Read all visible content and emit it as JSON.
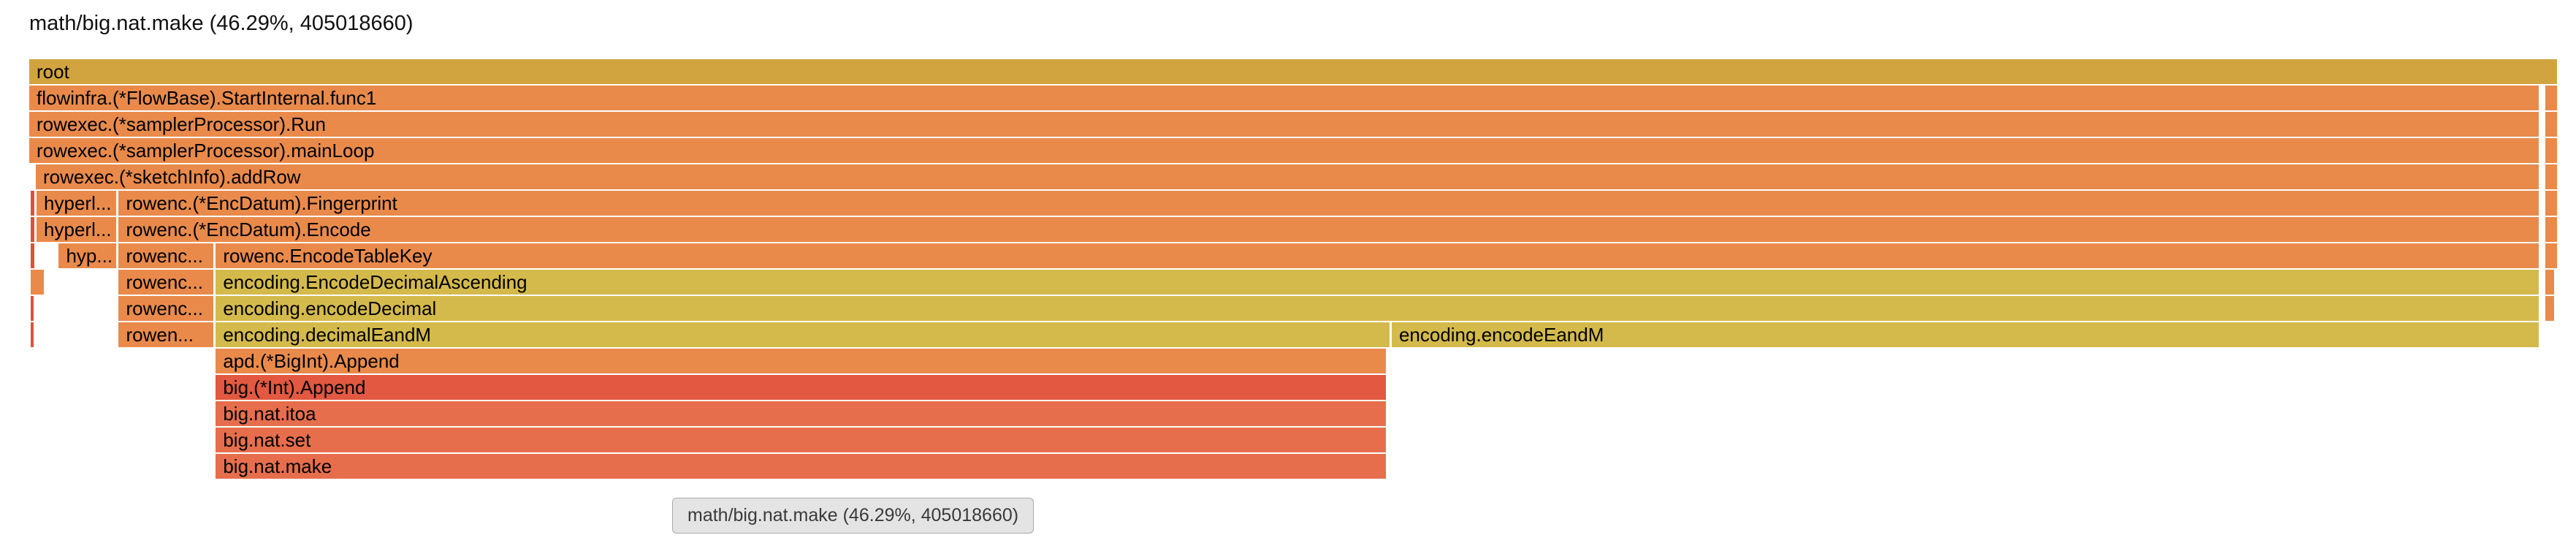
{
  "page": {
    "title": "math/big.nat.make (46.29%, 405018660)"
  },
  "tooltip": {
    "text": "math/big.nat.make (46.29%, 405018660)"
  },
  "chart_data": {
    "type": "flamegraph",
    "title": "math/big.nat.make (46.29%, 405018660)",
    "selected_frame": {
      "name": "math/big.nat.make",
      "percent": "46.29%",
      "value": 405018660
    },
    "legend_position": "none",
    "grid": false,
    "colors": {
      "root": "#d1a43f",
      "orange": "#e98a4b",
      "gold": "#d4ba4b",
      "sliver": "#d9543a",
      "red": "#e25840",
      "redlight": "#e76e4c"
    },
    "frames": [
      {
        "label": "root",
        "depth": 0,
        "x": 0,
        "w": 100,
        "color": "root"
      },
      {
        "label": "flowinfra.(*FlowBase).StartInternal.func1",
        "depth": 1,
        "x": 0,
        "w": 99.28,
        "color": "orange"
      },
      {
        "label": "",
        "depth": 1,
        "x": 99.53,
        "w": 0.47,
        "color": "orange"
      },
      {
        "label": "rowexec.(*samplerProcessor).Run",
        "depth": 2,
        "x": 0,
        "w": 99.28,
        "color": "orange"
      },
      {
        "label": "",
        "depth": 2,
        "x": 99.53,
        "w": 0.47,
        "color": "orange"
      },
      {
        "label": "rowexec.(*samplerProcessor).mainLoop",
        "depth": 3,
        "x": 0,
        "w": 99.28,
        "color": "orange"
      },
      {
        "label": "",
        "depth": 3,
        "x": 99.53,
        "w": 0.47,
        "color": "orange"
      },
      {
        "label": "rowexec.(*sketchInfo).addRow",
        "depth": 4,
        "x": 0.26,
        "w": 99.02,
        "color": "orange"
      },
      {
        "label": "",
        "depth": 4,
        "x": 99.53,
        "w": 0.47,
        "color": "orange"
      },
      {
        "label": "",
        "depth": 5,
        "x": 0.07,
        "w": 0.13,
        "color": "sliver"
      },
      {
        "label": "hyperl...",
        "depth": 5,
        "x": 0.29,
        "w": 3.15,
        "color": "orange"
      },
      {
        "label": "rowenc.(*EncDatum).Fingerprint",
        "depth": 5,
        "x": 3.54,
        "w": 95.74,
        "color": "orange"
      },
      {
        "label": "",
        "depth": 5,
        "x": 99.53,
        "w": 0.47,
        "color": "orange"
      },
      {
        "label": "",
        "depth": 6,
        "x": 0.07,
        "w": 0.13,
        "color": "sliver"
      },
      {
        "label": "hyperl...",
        "depth": 6,
        "x": 0.29,
        "w": 3.15,
        "color": "orange"
      },
      {
        "label": "rowenc.(*EncDatum).Encode",
        "depth": 6,
        "x": 3.54,
        "w": 95.74,
        "color": "orange"
      },
      {
        "label": "",
        "depth": 6,
        "x": 99.53,
        "w": 0.47,
        "color": "orange"
      },
      {
        "label": "",
        "depth": 7,
        "x": 0.07,
        "w": 0.13,
        "color": "sliver"
      },
      {
        "label": "hyp...",
        "depth": 7,
        "x": 1.17,
        "w": 2.27,
        "color": "orange"
      },
      {
        "label": "rowenc...",
        "depth": 7,
        "x": 3.54,
        "w": 3.74,
        "color": "orange"
      },
      {
        "label": "rowenc.EncodeTableKey",
        "depth": 7,
        "x": 7.38,
        "w": 91.9,
        "color": "orange"
      },
      {
        "label": "",
        "depth": 7,
        "x": 99.53,
        "w": 0.47,
        "color": "orange"
      },
      {
        "label": "",
        "depth": 8,
        "x": 0.07,
        "w": 0.5,
        "color": "orange"
      },
      {
        "label": "rowenc...",
        "depth": 8,
        "x": 3.54,
        "w": 3.74,
        "color": "orange"
      },
      {
        "label": "encoding.EncodeDecimalAscending",
        "depth": 8,
        "x": 7.38,
        "w": 91.9,
        "color": "gold"
      },
      {
        "label": "",
        "depth": 8,
        "x": 99.53,
        "w": 0.35,
        "color": "orange"
      },
      {
        "label": "",
        "depth": 9,
        "x": 0.07,
        "w": 0.1,
        "color": "sliver"
      },
      {
        "label": "rowenc...",
        "depth": 9,
        "x": 3.54,
        "w": 3.74,
        "color": "orange"
      },
      {
        "label": "encoding.encodeDecimal",
        "depth": 9,
        "x": 7.38,
        "w": 91.9,
        "color": "gold"
      },
      {
        "label": "",
        "depth": 9,
        "x": 99.53,
        "w": 0.35,
        "color": "orange"
      },
      {
        "label": "",
        "depth": 10,
        "x": 0.07,
        "w": 0.1,
        "color": "sliver"
      },
      {
        "label": "rowen...",
        "depth": 10,
        "x": 3.54,
        "w": 3.74,
        "color": "orange"
      },
      {
        "label": "encoding.decimalEandM",
        "depth": 10,
        "x": 7.38,
        "w": 46.44,
        "color": "gold"
      },
      {
        "label": "encoding.encodeEandM",
        "depth": 10,
        "x": 53.9,
        "w": 45.38,
        "color": "gold"
      },
      {
        "label": "apd.(*BigInt).Append",
        "depth": 11,
        "x": 7.38,
        "w": 46.29,
        "color": "orange"
      },
      {
        "label": "big.(*Int).Append",
        "depth": 12,
        "x": 7.38,
        "w": 46.29,
        "color": "red"
      },
      {
        "label": "big.nat.itoa",
        "depth": 13,
        "x": 7.38,
        "w": 46.29,
        "color": "redlight"
      },
      {
        "label": "big.nat.set",
        "depth": 14,
        "x": 7.38,
        "w": 46.29,
        "color": "redlight"
      },
      {
        "label": "big.nat.make",
        "depth": 15,
        "x": 7.38,
        "w": 46.29,
        "color": "redlight"
      }
    ]
  }
}
